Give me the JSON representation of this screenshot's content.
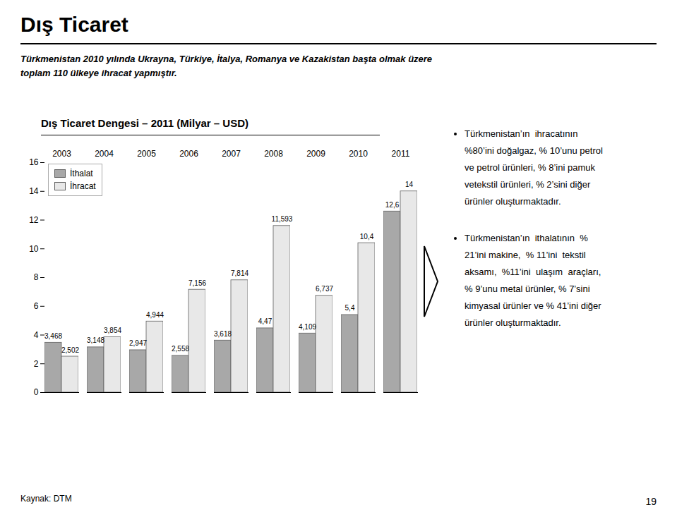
{
  "chart_data": {
    "type": "bar",
    "title": "Dış Ticaret",
    "subtitle": [
      "Türkmenistan 2010 yılında Ukrayna, Türkiye, İtalya, Romanya ve Kazakistan başta olmak üzere",
      "toplam 110 ülkeye ihracat yapmıştır."
    ],
    "chart_title": "Dış Ticaret Dengesi – 2011 (Milyar – USD)",
    "categories": [
      "2003",
      "2004",
      "2005",
      "2006",
      "2007",
      "2008",
      "2009",
      "2010",
      "2011"
    ],
    "series": [
      {
        "name": "İthalat",
        "color": "#a8a8a8",
        "values": [
          3.468,
          3.148,
          2.947,
          2.558,
          3.618,
          4.47,
          4.109,
          5.4,
          12.6
        ],
        "value_labels": [
          "3,468",
          "3,148",
          "2,947",
          "2,558",
          "3,618",
          "4,47",
          "4,109",
          "5,4",
          "12,6"
        ]
      },
      {
        "name": "İhracat",
        "color": "#e8e8e8",
        "values": [
          2.502,
          3.854,
          4.944,
          7.156,
          7.814,
          11.593,
          6.737,
          10.4,
          14.0
        ],
        "value_labels": [
          "2,502",
          "3,854",
          "4,944",
          "7,156",
          "7,814",
          "11,593",
          "6,737",
          "10,4",
          "14"
        ]
      }
    ],
    "ylim": [
      0,
      16
    ],
    "yticks": [
      0,
      2,
      4,
      6,
      8,
      10,
      12,
      14,
      16
    ],
    "grid": false,
    "legend": "upper left",
    "data_labels": true,
    "notes": [
      [
        "Türkmenistan’ın  ihracatının",
        "%80’ini doğalgaz, % 10’unu petrol",
        "ve petrol ürünleri, % 8’ini pamuk",
        "vetekstil ürünleri, % 2’sini diğer",
        "ürünler oluşturmaktadır."
      ],
      [
        "Türkmenistan’ın  ithalatının  %",
        "21’ini makine,  % 11’ini  tekstil",
        "aksamı,  %11’ini  ulaşım  araçları,",
        "% 9’unu metal ürünler, % 7’sini",
        "kimyasal ürünler ve % 41’ini diğer",
        "ürünler oluşturmaktadır."
      ]
    ],
    "source": "Kaynak: DTM",
    "page_number": "19"
  }
}
